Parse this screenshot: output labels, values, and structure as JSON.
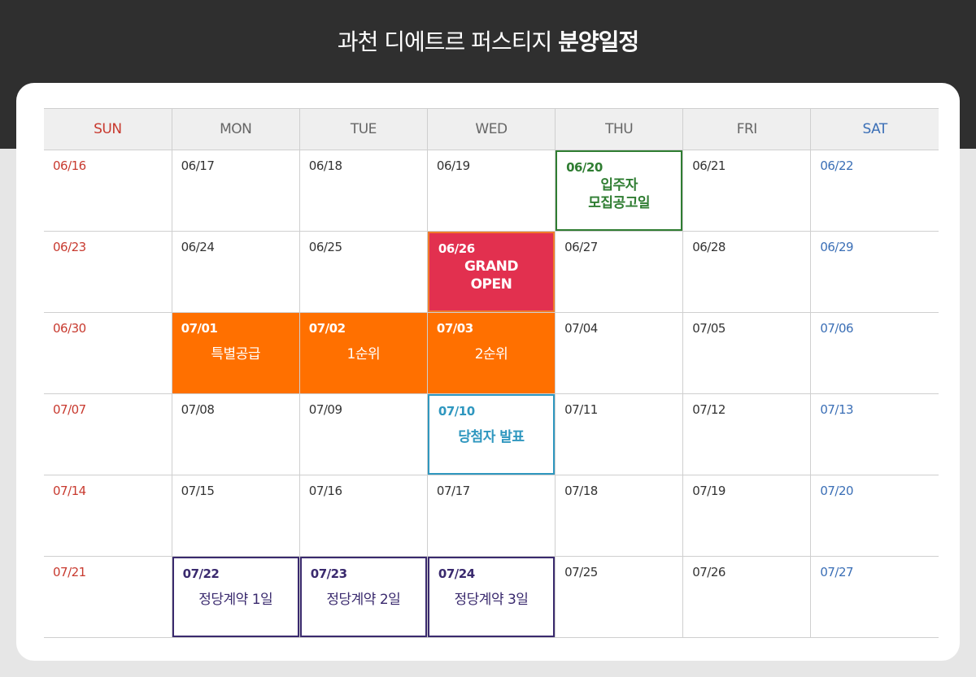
{
  "header": {
    "title_regular": "과천 디에트르 퍼스티지",
    "title_bold": "분양일정"
  },
  "calendar": {
    "days": [
      "SUN",
      "MON",
      "TUE",
      "WED",
      "THU",
      "FRI",
      "SAT"
    ],
    "day_colors": {
      "SUN": "#c83a2f",
      "SAT": "#3b6fb6",
      "default": "#666666"
    },
    "weeks": [
      [
        {
          "date": "06/16"
        },
        {
          "date": "06/17"
        },
        {
          "date": "06/18"
        },
        {
          "date": "06/19"
        },
        {
          "date": "06/20",
          "event": [
            "입주자",
            "모집공고일"
          ],
          "style": "green"
        },
        {
          "date": "06/21"
        },
        {
          "date": "06/22"
        }
      ],
      [
        {
          "date": "06/23"
        },
        {
          "date": "06/24"
        },
        {
          "date": "06/25"
        },
        {
          "date": "06/26",
          "event": [
            "GRAND",
            "OPEN"
          ],
          "style": "red"
        },
        {
          "date": "06/27"
        },
        {
          "date": "06/28"
        },
        {
          "date": "06/29"
        }
      ],
      [
        {
          "date": "06/30"
        },
        {
          "date": "07/01",
          "event": [
            "특별공급"
          ],
          "style": "orange"
        },
        {
          "date": "07/02",
          "event": [
            "1순위"
          ],
          "style": "orange"
        },
        {
          "date": "07/03",
          "event": [
            "2순위"
          ],
          "style": "orange"
        },
        {
          "date": "07/04"
        },
        {
          "date": "07/05"
        },
        {
          "date": "07/06"
        }
      ],
      [
        {
          "date": "07/07"
        },
        {
          "date": "07/08"
        },
        {
          "date": "07/09"
        },
        {
          "date": "07/10",
          "event": [
            "당첨자 발표"
          ],
          "style": "blue"
        },
        {
          "date": "07/11"
        },
        {
          "date": "07/12"
        },
        {
          "date": "07/13"
        }
      ],
      [
        {
          "date": "07/14"
        },
        {
          "date": "07/15"
        },
        {
          "date": "07/16"
        },
        {
          "date": "07/17"
        },
        {
          "date": "07/18"
        },
        {
          "date": "07/19"
        },
        {
          "date": "07/20"
        }
      ],
      [
        {
          "date": "07/21"
        },
        {
          "date": "07/22",
          "event": [
            "정당계약 1일"
          ],
          "style": "purple"
        },
        {
          "date": "07/23",
          "event": [
            "정당계약 2일"
          ],
          "style": "purple"
        },
        {
          "date": "07/24",
          "event": [
            "정당계약 3일"
          ],
          "style": "purple"
        },
        {
          "date": "07/25"
        },
        {
          "date": "07/26"
        },
        {
          "date": "07/27"
        }
      ]
    ],
    "event_colors": {
      "green": "#2f7d32",
      "red": "#e2304f",
      "orange": "#ff7000",
      "blue": "#2f97bf",
      "purple": "#3a2a6e"
    }
  }
}
